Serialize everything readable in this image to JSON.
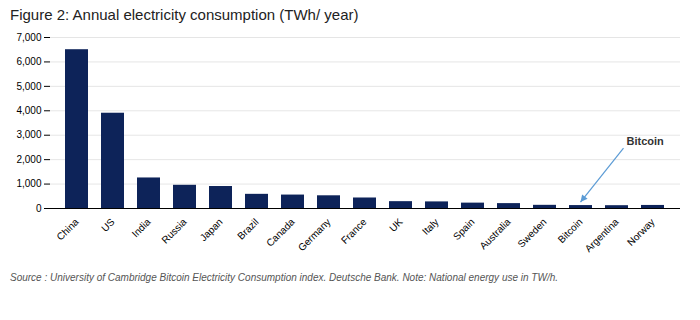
{
  "chart_data": {
    "type": "bar",
    "title": "Figure 2: Annual electricity consumption (TWh/ year)",
    "categories": [
      "China",
      "US",
      "India",
      "Russia",
      "Japan",
      "Brazil",
      "Canada",
      "Germany",
      "France",
      "UK",
      "Italy",
      "Spain",
      "Australia",
      "Sweden",
      "Bitcoin",
      "Argentina",
      "Norway"
    ],
    "values": [
      6500,
      3900,
      1250,
      950,
      900,
      580,
      550,
      520,
      430,
      280,
      270,
      220,
      200,
      130,
      120,
      115,
      125
    ],
    "color": "#0d2359",
    "ylim": [
      0,
      7000
    ],
    "yticks": [
      0,
      {
        "value": 1000,
        "label": "1,000"
      },
      {
        "value": 2000,
        "label": "2,000"
      },
      {
        "value": 3000,
        "label": "3,000"
      },
      {
        "value": 4000,
        "label": "4,000"
      },
      {
        "value": 5000,
        "label": "5,000"
      },
      {
        "value": 6000,
        "label": "6,000"
      },
      {
        "value": 7000,
        "label": "7,000"
      }
    ],
    "grid": true,
    "annotations": [
      {
        "text": "Bitcoin",
        "category": "Bitcoin",
        "color": "#5b9bd5"
      }
    ],
    "caption": "Source : University of Cambridge Bitcoin Electricity Consumption index. Deutsche Bank. Note: National energy use in TW/h."
  }
}
